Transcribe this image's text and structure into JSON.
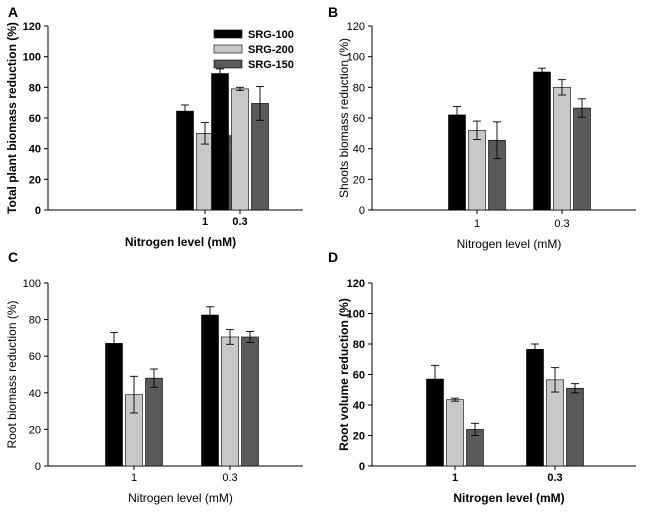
{
  "chart_data": [
    {
      "type": "bar",
      "panel_label": "A",
      "title": "",
      "xlabel": "Nitrogen level (mM)",
      "ylabel": "Total plant biomass reduction (%)",
      "ylim": [
        0,
        120
      ],
      "yticks": [
        0,
        20,
        40,
        60,
        80,
        100,
        120
      ],
      "ytick_labels": [
        "0",
        "20",
        "40",
        "60",
        "80",
        "100",
        "120"
      ],
      "categories": [
        "1",
        "0.3"
      ],
      "series": [
        {
          "name": "SRG-100",
          "color": "#000000",
          "values": [
            64.5,
            89
          ],
          "errors": [
            4,
            3
          ]
        },
        {
          "name": "SRG-200",
          "color": "#c8c8c8",
          "values": [
            50,
            79
          ],
          "errors": [
            7,
            1
          ]
        },
        {
          "name": "SRG-150",
          "color": "#5a5a5a",
          "values": [
            48.5,
            69.5
          ],
          "errors": [
            7,
            11
          ]
        }
      ],
      "legend": {
        "position": "top-right",
        "items": [
          "SRG-100",
          "SRG-200",
          "SRG-150"
        ]
      },
      "bold_labels": true
    },
    {
      "type": "bar",
      "panel_label": "B",
      "title": "",
      "xlabel": "Nitrogen level (mM)",
      "ylabel": "Shoots biomass reduction (%)",
      "ylim": [
        0,
        120
      ],
      "yticks": [
        0,
        20,
        40,
        60,
        80,
        100,
        120
      ],
      "ytick_labels": [
        "0",
        "20",
        "40",
        "60",
        "80",
        "100",
        "120"
      ],
      "categories": [
        "1",
        "0.3"
      ],
      "series": [
        {
          "name": "SRG-100",
          "color": "#000000",
          "values": [
            62,
            90
          ],
          "errors": [
            5.5,
            2.5
          ]
        },
        {
          "name": "SRG-200",
          "color": "#c8c8c8",
          "values": [
            52,
            80
          ],
          "errors": [
            6,
            5
          ]
        },
        {
          "name": "SRG-150",
          "color": "#5a5a5a",
          "values": [
            45.5,
            66.5
          ],
          "errors": [
            12,
            6
          ]
        }
      ],
      "bold_labels": false
    },
    {
      "type": "bar",
      "panel_label": "C",
      "title": "",
      "xlabel": "Nitrogen level (mM)",
      "ylabel": "Root biomass reduction (%)",
      "ylim": [
        0,
        100
      ],
      "yticks": [
        0,
        20,
        40,
        60,
        80,
        100
      ],
      "ytick_labels": [
        "0",
        "20",
        "40",
        "60",
        "80",
        "100"
      ],
      "categories": [
        "1",
        "0.3"
      ],
      "series": [
        {
          "name": "SRG-100",
          "color": "#000000",
          "values": [
            67,
            82.5
          ],
          "errors": [
            6,
            4.5
          ]
        },
        {
          "name": "SRG-200",
          "color": "#c8c8c8",
          "values": [
            39,
            70.5
          ],
          "errors": [
            10,
            4
          ]
        },
        {
          "name": "SRG-150",
          "color": "#5a5a5a",
          "values": [
            48,
            70.5
          ],
          "errors": [
            5,
            3
          ]
        }
      ],
      "bold_labels": false
    },
    {
      "type": "bar",
      "panel_label": "D",
      "title": "",
      "xlabel": "Nitrogen level (mM)",
      "ylabel": "Root volume reduction (%)",
      "ylim": [
        0,
        120
      ],
      "yticks": [
        0,
        20,
        40,
        60,
        80,
        100,
        120
      ],
      "ytick_labels": [
        "0",
        "20",
        "40",
        "60",
        "80",
        "100",
        "120"
      ],
      "categories": [
        "1",
        "0.3"
      ],
      "series": [
        {
          "name": "SRG-100",
          "color": "#000000",
          "values": [
            57,
            76.5
          ],
          "errors": [
            9,
            3.5
          ]
        },
        {
          "name": "SRG-200",
          "color": "#c8c8c8",
          "values": [
            43.5,
            56.5
          ],
          "errors": [
            1,
            8
          ]
        },
        {
          "name": "SRG-150",
          "color": "#5a5a5a",
          "values": [
            24,
            51
          ],
          "errors": [
            4,
            3
          ]
        }
      ],
      "bold_labels": true
    }
  ]
}
